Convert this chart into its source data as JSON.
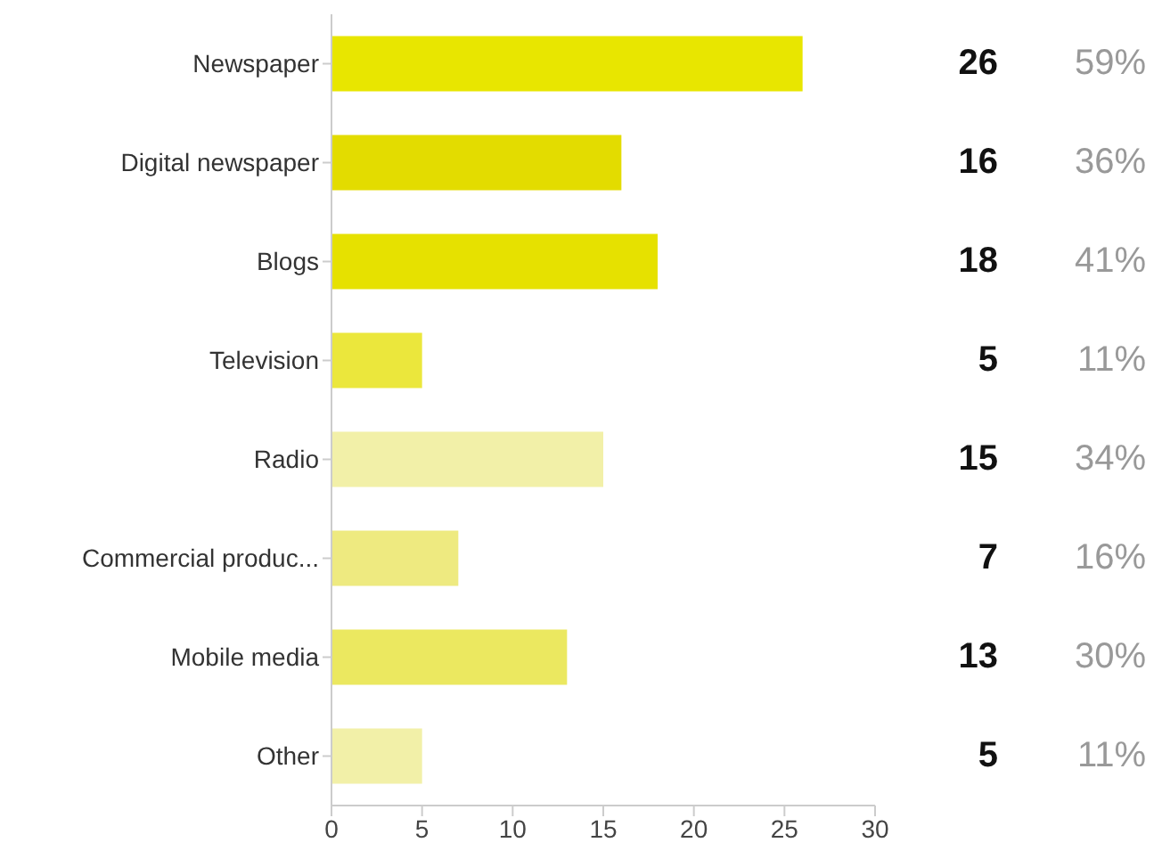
{
  "chart_data": {
    "type": "bar",
    "orientation": "horizontal",
    "categories": [
      "Newspaper",
      "Digital newspaper",
      "Blogs",
      "Television",
      "Radio",
      "Commercial produc...",
      "Mobile media",
      "Other"
    ],
    "values": [
      26,
      16,
      18,
      5,
      15,
      7,
      13,
      5
    ],
    "colors": [
      "#e8e600",
      "#e3dc00",
      "#e6e100",
      "#ebe73c",
      "#f2f0a8",
      "#eeea80",
      "#ebe860",
      "#f2f0a8"
    ],
    "data_labels": true,
    "annotations": [
      "59%",
      "36%",
      "41%",
      "11%",
      "34%",
      "16%",
      "30%",
      "11%"
    ],
    "xlim": [
      0,
      30
    ],
    "xticks": [
      0,
      5,
      10,
      15,
      20,
      25,
      30
    ],
    "grid": false,
    "legend": false
  }
}
